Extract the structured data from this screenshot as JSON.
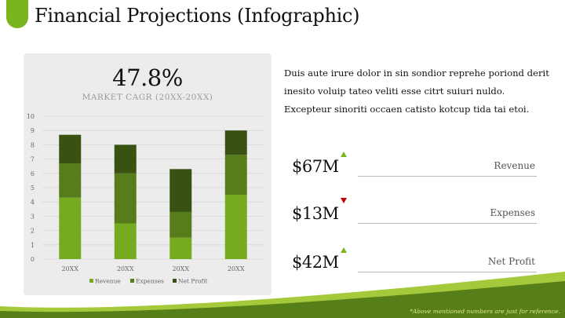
{
  "title": "Financial Projections (Infographic)",
  "cagr": {
    "value": "47.8%",
    "label": "MARKET CAGR (20XX-20XX)"
  },
  "description": "Duis aute irure dolor in sin sondior reprehe poriond derit inesito voluip tateo veliti esse citrt suiuri nuldo. Excepteur sinoriti occaen catisto kotcup tida tai etoi.",
  "kpis": [
    {
      "value": "$67M",
      "label": "Revenue",
      "trend": "up",
      "trend_color": "#7ab51d"
    },
    {
      "value": "$13M",
      "label": "Expenses",
      "trend": "down",
      "trend_color": "#c00000"
    },
    {
      "value": "$42M",
      "label": "Net Profit",
      "trend": "up",
      "trend_color": "#7ab51d"
    }
  ],
  "footnote": "*Above mentioned numbers are just for reference.",
  "colors": {
    "accent": "#7ab51d",
    "revenue": "#76ab1f",
    "expenses": "#567c1b",
    "net_profit": "#3a5211"
  },
  "chart_data": {
    "type": "bar",
    "stacked": true,
    "categories": [
      "20XX",
      "20XX",
      "20XX",
      "20XX"
    ],
    "series": [
      {
        "name": "Revenue",
        "values": [
          4.3,
          2.5,
          1.5,
          4.5
        ]
      },
      {
        "name": "Expenses",
        "values": [
          2.4,
          3.5,
          1.8,
          2.8
        ]
      },
      {
        "name": "Net Profit",
        "values": [
          2.0,
          2.0,
          3.0,
          1.7
        ]
      }
    ],
    "ylim": [
      0,
      10
    ],
    "yticks": [
      0,
      1,
      2,
      3,
      4,
      5,
      6,
      7,
      8,
      9,
      10
    ],
    "grid": true,
    "legend": "bottom"
  }
}
